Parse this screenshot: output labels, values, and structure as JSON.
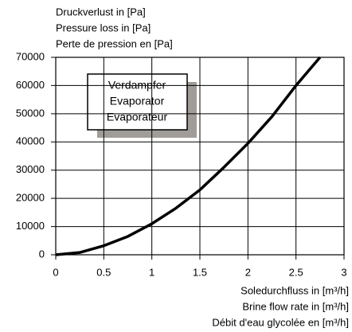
{
  "chart_data": {
    "type": "line",
    "ylabel": [
      "Druckverlust in [Pa]",
      "Pressure loss in [Pa]",
      "Perte de pression en [Pa]"
    ],
    "xlabel": [
      "Soledurchfluss in [m³/h]",
      "Brine flow rate in [m³/h]",
      "Débit d'eau glycolée en [m³/h]"
    ],
    "annotation": [
      "Verdampfer",
      "Evaporator",
      "Evaporateur"
    ],
    "x": [
      0,
      0.25,
      0.5,
      0.75,
      1,
      1.25,
      1.5,
      1.75,
      2,
      2.25,
      2.5,
      2.75
    ],
    "series": [
      {
        "name": "Verdampfer",
        "color": "#000000",
        "values": [
          0,
          800,
          3200,
          6500,
          11000,
          16500,
          23000,
          31000,
          39500,
          49000,
          60000,
          70000
        ]
      }
    ],
    "xlim": [
      0,
      3
    ],
    "xticks": [
      0,
      0.5,
      1,
      1.5,
      2,
      2.5,
      3
    ],
    "ylim": [
      0,
      70000
    ],
    "yticks": [
      0,
      10000,
      20000,
      30000,
      40000,
      50000,
      60000,
      70000
    ],
    "grid": true
  }
}
